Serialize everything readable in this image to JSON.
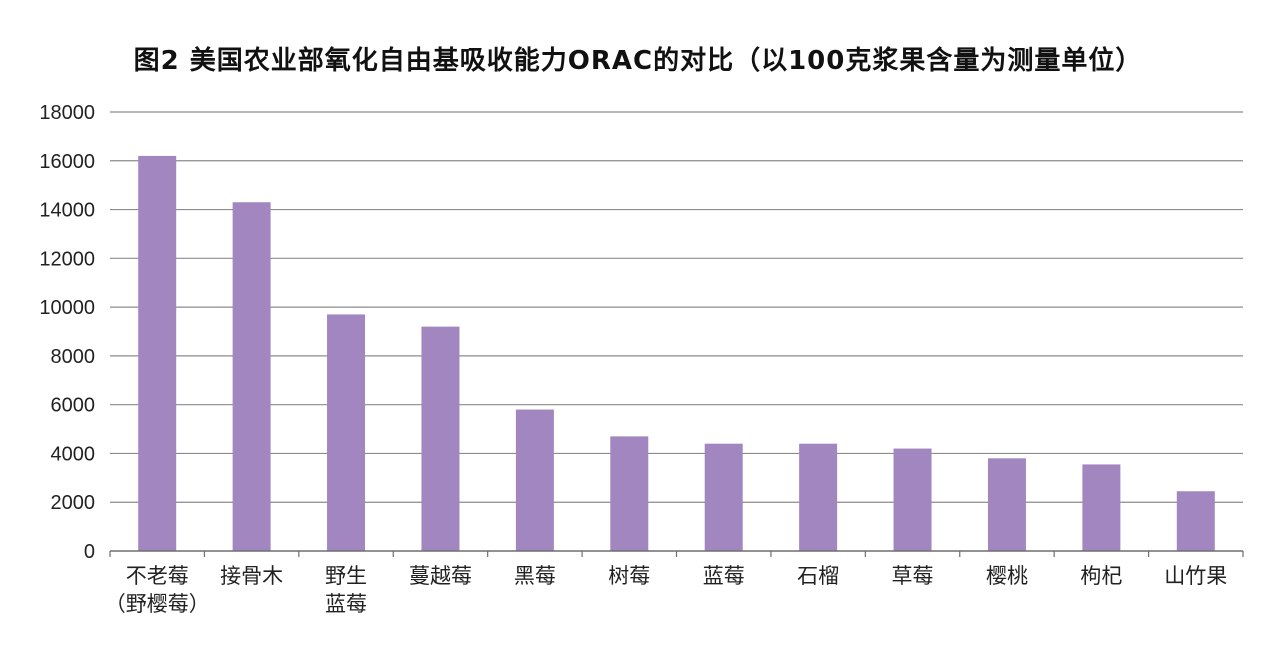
{
  "chart_data": {
    "type": "bar",
    "title": "图2 美国农业部氧化自由基吸收能力ORAC的对比（以100克浆果含量为测量单位）",
    "categories": [
      [
        "不老莓",
        "（野樱莓）"
      ],
      [
        "接骨木"
      ],
      [
        "野生",
        "蓝莓"
      ],
      [
        "蔓越莓"
      ],
      [
        "黑莓"
      ],
      [
        "树莓"
      ],
      [
        "蓝莓"
      ],
      [
        "石榴"
      ],
      [
        "草莓"
      ],
      [
        "樱桃"
      ],
      [
        "枸杞"
      ],
      [
        "山竹果"
      ]
    ],
    "values": [
      16200,
      14300,
      9700,
      9200,
      5800,
      4700,
      4400,
      4400,
      4200,
      3800,
      3550,
      2450
    ],
    "ylim": [
      0,
      18000
    ],
    "yticks": [
      0,
      2000,
      4000,
      6000,
      8000,
      10000,
      12000,
      14000,
      16000,
      18000
    ],
    "grid": true,
    "bar_color": "#a286bf"
  }
}
